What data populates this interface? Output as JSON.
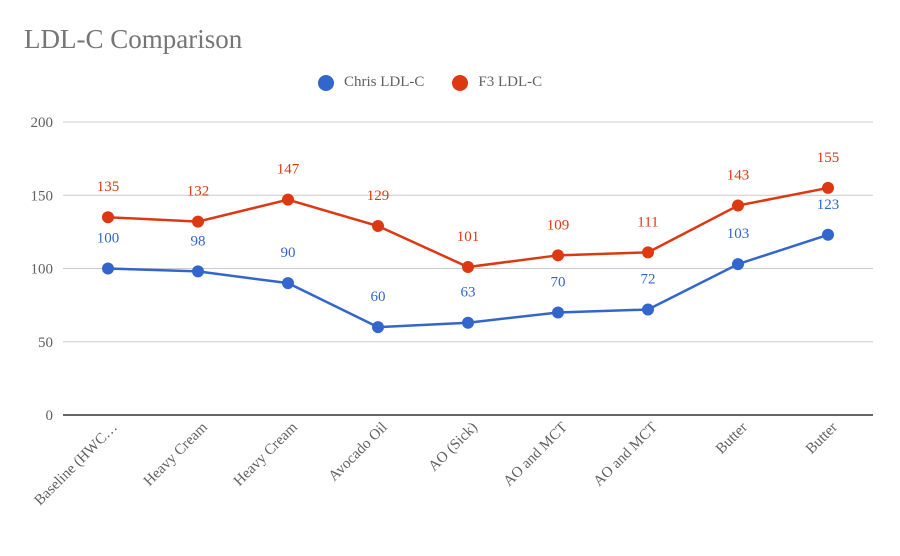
{
  "chart_data": {
    "type": "line",
    "title": "LDL-C Comparison",
    "xlabel": "",
    "ylabel": "",
    "categories": [
      "Baseline (HWC…",
      "Heavy Cream",
      "Heavy Cream",
      "Avocado Oil",
      "AO (Sick)",
      "AO and MCT",
      "AO and MCT",
      "Butter",
      "Butter"
    ],
    "series": [
      {
        "name": "Chris LDL-C",
        "color": "#3366cc",
        "values": [
          100,
          98,
          90,
          60,
          63,
          70,
          72,
          103,
          123
        ]
      },
      {
        "name": "F3 LDL-C",
        "color": "#dc3912",
        "values": [
          135,
          132,
          147,
          129,
          101,
          109,
          111,
          143,
          155
        ]
      }
    ],
    "ylim": [
      0,
      200
    ],
    "yticks": [
      0,
      50,
      100,
      150,
      200
    ],
    "grid": true,
    "legend_position": "top",
    "data_labels": true
  }
}
